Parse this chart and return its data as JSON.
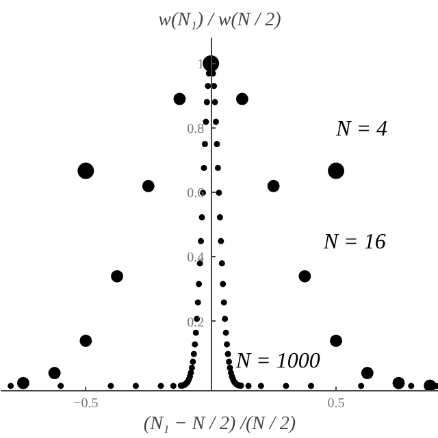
{
  "chart_data": {
    "type": "scatter",
    "xlabel": "(N₁ − N / 2) /(N / 2)",
    "ylabel": "w(N₁) / w(N / 2)",
    "xlim": [
      -0.84,
      0.91
    ],
    "ylim": [
      -0.015,
      1.08
    ],
    "xticks": [
      -0.5,
      0.5
    ],
    "yticks": [
      0.2,
      0.4,
      0.6,
      0.8,
      {
        "value": 1,
        "label": "1"
      }
    ],
    "grid": false,
    "marker": "circle",
    "series": [
      {
        "name": "N = 4",
        "color": "#000000",
        "x": [
          -0.5,
          0,
          0.5
        ],
        "values": [
          0.667,
          1,
          0.667
        ]
      },
      {
        "name": "N = 16",
        "color": "#000000",
        "x": [
          -0.75,
          -0.625,
          -0.5,
          -0.375,
          -0.25,
          -0.125,
          0.125,
          0.25,
          0.375,
          0.5,
          0.625,
          0.75,
          0.875
        ],
        "values": [
          0.009,
          0.04,
          0.14,
          0.34,
          0.62,
          0.89,
          0.89,
          0.62,
          0.34,
          0.14,
          0.04,
          0.009,
          0.001
        ]
      },
      {
        "name": "N = 1000",
        "color": "#000000",
        "x": [
          -0.8,
          -0.6,
          -0.4,
          -0.3,
          -0.2,
          -0.15,
          -0.12,
          -0.116,
          -0.112,
          -0.108,
          -0.104,
          -0.1,
          -0.096,
          -0.092,
          -0.088,
          -0.084,
          -0.08,
          -0.076,
          -0.072,
          -0.068,
          -0.064,
          -0.06,
          -0.056,
          -0.052,
          -0.048,
          -0.044,
          -0.04,
          -0.036,
          -0.032,
          -0.028,
          -0.024,
          -0.02,
          -0.016,
          -0.012,
          -0.008,
          0.008,
          0.012,
          0.016,
          0.02,
          0.024,
          0.028,
          0.032,
          0.036,
          0.04,
          0.044,
          0.048,
          0.052,
          0.056,
          0.06,
          0.064,
          0.068,
          0.072,
          0.076,
          0.08,
          0.084,
          0.088,
          0.092,
          0.096,
          0.1,
          0.104,
          0.108,
          0.112,
          0.116,
          0.12,
          0.15,
          0.2,
          0.3,
          0.4,
          0.6,
          0.8,
          0.9
        ],
        "values": [
          0,
          0,
          0,
          0,
          0,
          0,
          0.001,
          0.001,
          0.002,
          0.003,
          0.004,
          0.007,
          0.01,
          0.014,
          0.021,
          0.029,
          0.041,
          0.056,
          0.075,
          0.099,
          0.129,
          0.165,
          0.208,
          0.259,
          0.316,
          0.38,
          0.449,
          0.523,
          0.599,
          0.676,
          0.75,
          0.819,
          0.88,
          0.93,
          0.969,
          0.969,
          0.93,
          0.88,
          0.819,
          0.75,
          0.676,
          0.599,
          0.523,
          0.449,
          0.38,
          0.316,
          0.259,
          0.208,
          0.165,
          0.129,
          0.099,
          0.075,
          0.056,
          0.041,
          0.029,
          0.021,
          0.014,
          0.01,
          0.007,
          0.004,
          0.003,
          0.002,
          0.001,
          0.001,
          0,
          0,
          0,
          0,
          0,
          0,
          0
        ]
      }
    ]
  }
}
